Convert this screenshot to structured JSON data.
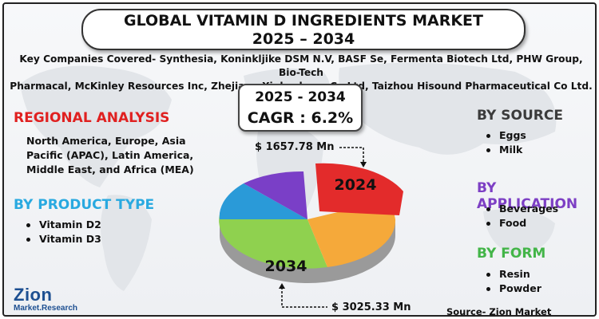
{
  "title": {
    "line1": "GLOBAL VITAMIN D INGREDIENTS MARKET",
    "line2": "2025 – 2034"
  },
  "companies": {
    "line1": "Key Companies Covered- Synthesia, Koninkljike DSM N.V, BASF Se, Fermenta Biotech Ltd, PHW Group, Bio-Tech",
    "line2": "Pharmacal, McKinley Resources Inc, Zhejiang Xinhecheng Co Ltd, Taizhou Hisound Pharmaceutical Co Ltd."
  },
  "cagr": {
    "years": "2025 - 2034",
    "value": "CAGR : 6.2%"
  },
  "regional": {
    "title": "REGIONAL ANALYSIS",
    "line1": "North America, Europe, Asia",
    "line2": "Pacific (APAC), Latin America,",
    "line3": "Middle East, and Africa (MEA)"
  },
  "product_type": {
    "title": "BY PRODUCT TYPE",
    "items": [
      "Vitamin D2",
      "Vitamin D3"
    ]
  },
  "source_segment": {
    "title": "BY SOURCE",
    "items": [
      "Eggs",
      "Milk"
    ]
  },
  "application": {
    "title": "BY APPLICATION",
    "items": [
      "Beverages",
      "Food"
    ]
  },
  "form": {
    "title": "BY FORM",
    "items": [
      "Resin",
      "Powder"
    ]
  },
  "pie": {
    "label_2024": "2024",
    "label_2034": "2034",
    "value_2024": "$ 1657.78 Mn",
    "value_2034": "$ 3025.33 Mn",
    "colors": {
      "red": "#e32b2b",
      "orange": "#f5a93a",
      "green": "#8fd14f",
      "blue": "#2a9ad8",
      "purple": "#7a3fc7"
    }
  },
  "logo": {
    "name": "Zion",
    "sub": "Market.Research"
  },
  "source_credit": "Source- Zion Market Research"
}
